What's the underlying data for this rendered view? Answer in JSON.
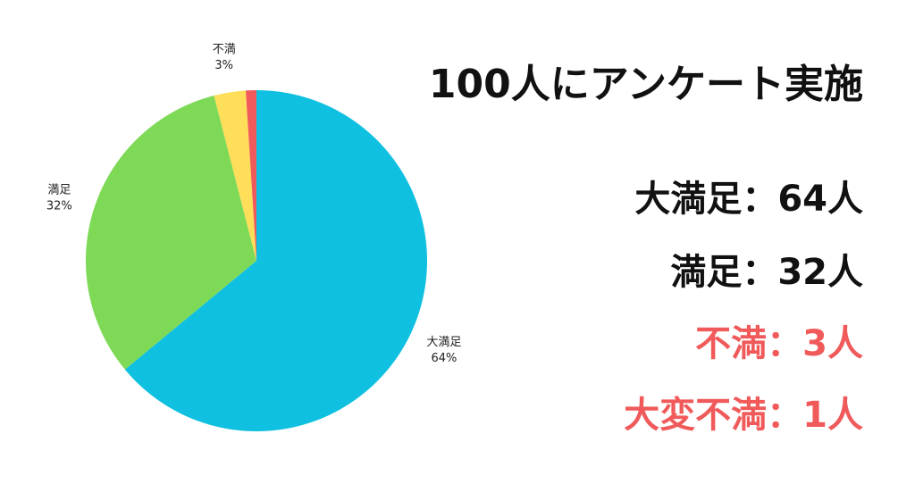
{
  "title": "100人にアンケート実施",
  "results": [
    {
      "text": "大満足：64人",
      "color": "#111111"
    },
    {
      "text": "満足：32人",
      "color": "#111111"
    },
    {
      "text": "不満：3人",
      "color": "#f05a5a"
    },
    {
      "text": "大変不満：1人",
      "color": "#f05a5a"
    }
  ],
  "chart_data": {
    "type": "pie",
    "start_angle_deg": 0,
    "direction": "clockwise",
    "slices": [
      {
        "label": "大満足",
        "value": 64,
        "percent_label": "64%",
        "color": "#0fc0e0",
        "show_label": true
      },
      {
        "label": "満足",
        "value": 32,
        "percent_label": "32%",
        "color": "#7ed957",
        "show_label": true
      },
      {
        "label": "不満",
        "value": 3,
        "percent_label": "3%",
        "color": "#ffde59",
        "show_label": true
      },
      {
        "label": "大変不満",
        "value": 1,
        "percent_label": "1%",
        "color": "#f05a5a",
        "show_label": false
      }
    ]
  }
}
